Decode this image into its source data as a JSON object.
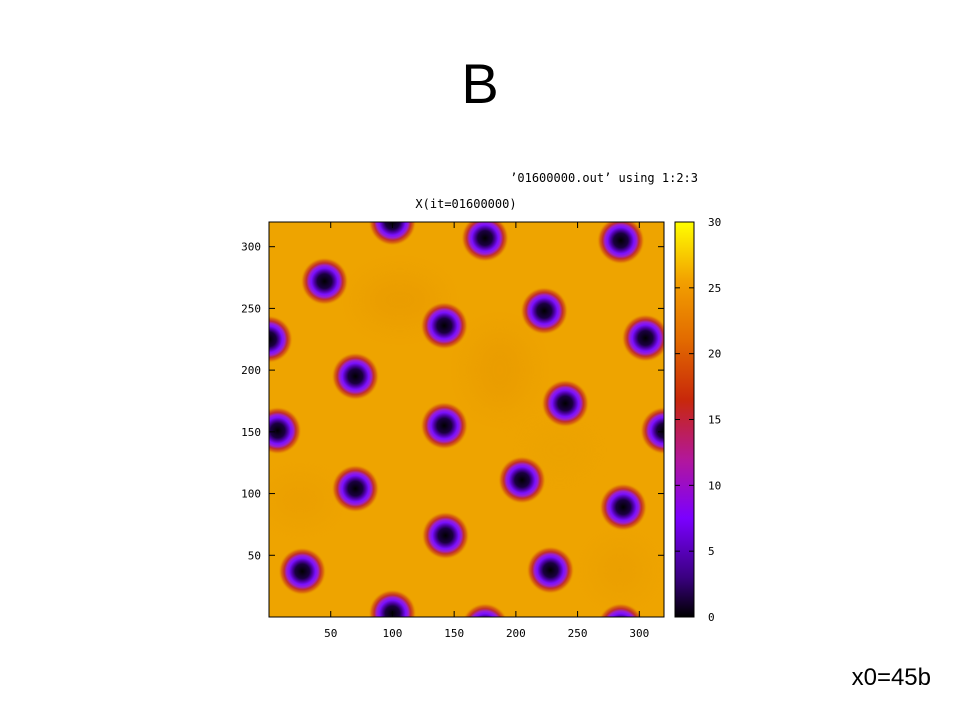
{
  "slide": {
    "title": "B",
    "footer_note": "x0=45b"
  },
  "chart_data": {
    "type": "heatmap",
    "title": "X(it=01600000)",
    "legend_entry": "’01600000.out’ using 1:2:3",
    "xlabel": "",
    "ylabel": "",
    "xlim": [
      0,
      320
    ],
    "ylim": [
      0,
      320
    ],
    "x_ticks": [
      50,
      100,
      150,
      200,
      250,
      300
    ],
    "y_ticks": [
      50,
      100,
      150,
      200,
      250,
      300
    ],
    "colorbar": {
      "range": [
        0,
        30
      ],
      "ticks": [
        0,
        5,
        10,
        15,
        20,
        25,
        30
      ],
      "palette": [
        "#000000",
        "#3a0080",
        "#7b00ff",
        "#b3179a",
        "#c8280a",
        "#e26a00",
        "#f2a000",
        "#ffff00"
      ]
    },
    "background_value": 26,
    "background_color": "#eea400",
    "spots": [
      {
        "x": 100,
        "y": 320
      },
      {
        "x": 175,
        "y": 307
      },
      {
        "x": 285,
        "y": 305
      },
      {
        "x": 45,
        "y": 272
      },
      {
        "x": 223,
        "y": 248
      },
      {
        "x": 142,
        "y": 236
      },
      {
        "x": 305,
        "y": 226
      },
      {
        "x": 70,
        "y": 195
      },
      {
        "x": 240,
        "y": 173
      },
      {
        "x": 7,
        "y": 151
      },
      {
        "x": 142,
        "y": 155
      },
      {
        "x": 320,
        "y": 151
      },
      {
        "x": 205,
        "y": 111
      },
      {
        "x": 70,
        "y": 104
      },
      {
        "x": 287,
        "y": 89
      },
      {
        "x": 143,
        "y": 66
      },
      {
        "x": 27,
        "y": 37
      },
      {
        "x": 228,
        "y": 38
      },
      {
        "x": 100,
        "y": 3
      },
      {
        "x": 175,
        "y": -8
      },
      {
        "x": 285,
        "y": -8
      },
      {
        "x": 0,
        "y": 225
      }
    ],
    "spot_min_value": 0
  }
}
